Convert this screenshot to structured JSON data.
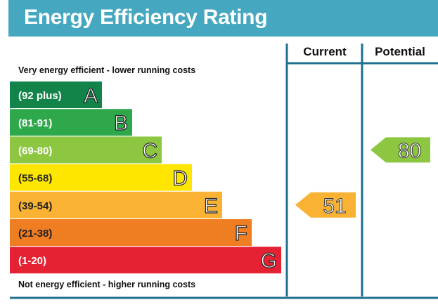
{
  "title": "Energy Efficiency Rating",
  "top_label": "Very energy efficient - lower running costs",
  "bottom_label": "Not energy efficient - higher running costs",
  "columns": {
    "current": "Current",
    "potential": "Potential"
  },
  "colors": {
    "header": "#46a7c0",
    "divider": "#1f6f8f"
  },
  "chart_data": {
    "type": "bar",
    "bands": [
      {
        "letter": "A",
        "range": "(92 plus)",
        "color": "#12844a"
      },
      {
        "letter": "B",
        "range": "(81-91)",
        "color": "#2ea84a"
      },
      {
        "letter": "C",
        "range": "(69-80)",
        "color": "#8dc640"
      },
      {
        "letter": "D",
        "range": "(55-68)",
        "color": "#ffe600"
      },
      {
        "letter": "E",
        "range": "(39-54)",
        "color": "#f9b233"
      },
      {
        "letter": "F",
        "range": "(21-38)",
        "color": "#ef7d22"
      },
      {
        "letter": "G",
        "range": "(1-20)",
        "color": "#e42233"
      }
    ],
    "current": {
      "value": 51,
      "band": "E",
      "color": "#f9b233"
    },
    "potential": {
      "value": 80,
      "band": "C",
      "color": "#8dc640"
    }
  }
}
